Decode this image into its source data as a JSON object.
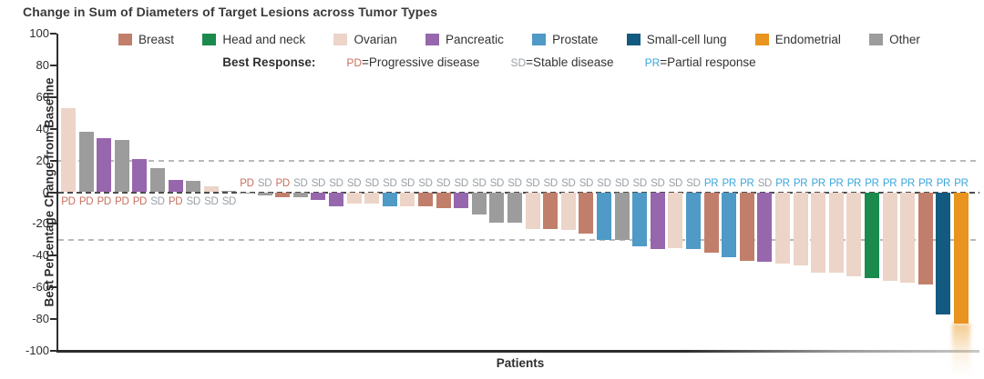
{
  "title": "Change in Sum of Diameters of Target Lesions across Tumor Types",
  "y_axis": {
    "label": "Best Percentage Change from Baseline",
    "tick_labels": [
      "100",
      "80",
      "60",
      "40",
      "20",
      "0",
      "-20",
      "-40",
      "-60",
      "-80",
      "-100"
    ],
    "tick_values": [
      100,
      80,
      60,
      40,
      20,
      0,
      -20,
      -40,
      -60,
      -80,
      -100
    ]
  },
  "x_axis": {
    "label": "Patients"
  },
  "legend": {
    "tumor_types": [
      {
        "label": "Breast",
        "color": "#c17f6b"
      },
      {
        "label": "Head and neck",
        "color": "#1a8a4d"
      },
      {
        "label": "Ovarian",
        "color": "#ecd4c8"
      },
      {
        "label": "Pancreatic",
        "color": "#9767ae"
      },
      {
        "label": "Prostate",
        "color": "#4f9ac6"
      },
      {
        "label": "Small-cell lung",
        "color": "#135a80"
      },
      {
        "label": "Endometrial",
        "color": "#e8941f"
      },
      {
        "label": "Other",
        "color": "#9c9c9c"
      }
    ],
    "best_response": {
      "heading": "Best Response:",
      "items": [
        {
          "code": "PD",
          "label": "Progressive disease",
          "color": "#c76f5c"
        },
        {
          "code": "SD",
          "label": "Stable disease",
          "color": "#9aa0a6"
        },
        {
          "code": "PR",
          "label": "Partial response",
          "color": "#3aa5dc"
        }
      ]
    }
  },
  "chart_data": {
    "type": "bar",
    "title": "Change in Sum of Diameters of Target Lesions across Tumor Types",
    "xlabel": "Patients",
    "ylabel": "Best Percentage Change from Baseline",
    "ylim": [
      -100,
      100
    ],
    "dashed_gridlines": [
      20,
      -30
    ],
    "zero_line_dashed": true,
    "legend_position": "top",
    "bars": [
      {
        "tumor": "Ovarian",
        "response": "PD",
        "value": 53
      },
      {
        "tumor": "Other",
        "response": "PD",
        "value": 38
      },
      {
        "tumor": "Pancreatic",
        "response": "PD",
        "value": 34
      },
      {
        "tumor": "Other",
        "response": "PD",
        "value": 33
      },
      {
        "tumor": "Pancreatic",
        "response": "PD",
        "value": 21
      },
      {
        "tumor": "Other",
        "response": "SD",
        "value": 15
      },
      {
        "tumor": "Pancreatic",
        "response": "PD",
        "value": 8
      },
      {
        "tumor": "Other",
        "response": "SD",
        "value": 7
      },
      {
        "tumor": "Ovarian",
        "response": "SD",
        "value": 4
      },
      {
        "tumor": "Other",
        "response": "SD",
        "value": 1
      },
      {
        "tumor": "Other",
        "response": "PD",
        "value": -1
      },
      {
        "tumor": "Other",
        "response": "SD",
        "value": -2
      },
      {
        "tumor": "Breast",
        "response": "PD",
        "value": -3
      },
      {
        "tumor": "Other",
        "response": "SD",
        "value": -3
      },
      {
        "tumor": "Pancreatic",
        "response": "SD",
        "value": -5
      },
      {
        "tumor": "Pancreatic",
        "response": "SD",
        "value": -9
      },
      {
        "tumor": "Ovarian",
        "response": "SD",
        "value": -7
      },
      {
        "tumor": "Ovarian",
        "response": "SD",
        "value": -7
      },
      {
        "tumor": "Prostate",
        "response": "SD",
        "value": -9
      },
      {
        "tumor": "Ovarian",
        "response": "SD",
        "value": -9
      },
      {
        "tumor": "Breast",
        "response": "SD",
        "value": -9
      },
      {
        "tumor": "Breast",
        "response": "SD",
        "value": -10
      },
      {
        "tumor": "Pancreatic",
        "response": "SD",
        "value": -10
      },
      {
        "tumor": "Other",
        "response": "SD",
        "value": -14
      },
      {
        "tumor": "Other",
        "response": "SD",
        "value": -19
      },
      {
        "tumor": "Other",
        "response": "SD",
        "value": -19
      },
      {
        "tumor": "Ovarian",
        "response": "SD",
        "value": -23
      },
      {
        "tumor": "Breast",
        "response": "SD",
        "value": -23
      },
      {
        "tumor": "Ovarian",
        "response": "SD",
        "value": -24
      },
      {
        "tumor": "Breast",
        "response": "SD",
        "value": -26
      },
      {
        "tumor": "Prostate",
        "response": "SD",
        "value": -30
      },
      {
        "tumor": "Other",
        "response": "SD",
        "value": -30
      },
      {
        "tumor": "Prostate",
        "response": "SD",
        "value": -34
      },
      {
        "tumor": "Pancreatic",
        "response": "SD",
        "value": -36
      },
      {
        "tumor": "Ovarian",
        "response": "SD",
        "value": -35
      },
      {
        "tumor": "Prostate",
        "response": "SD",
        "value": -36
      },
      {
        "tumor": "Breast",
        "response": "PR",
        "value": -38
      },
      {
        "tumor": "Prostate",
        "response": "PR",
        "value": -41
      },
      {
        "tumor": "Breast",
        "response": "PR",
        "value": -43
      },
      {
        "tumor": "Pancreatic",
        "response": "SD",
        "value": -44
      },
      {
        "tumor": "Ovarian",
        "response": "PR",
        "value": -45
      },
      {
        "tumor": "Ovarian",
        "response": "PR",
        "value": -46
      },
      {
        "tumor": "Ovarian",
        "response": "PR",
        "value": -51
      },
      {
        "tumor": "Ovarian",
        "response": "PR",
        "value": -51
      },
      {
        "tumor": "Ovarian",
        "response": "PR",
        "value": -53
      },
      {
        "tumor": "Head and neck",
        "response": "PR",
        "value": -54
      },
      {
        "tumor": "Ovarian",
        "response": "PR",
        "value": -56
      },
      {
        "tumor": "Ovarian",
        "response": "PR",
        "value": -57
      },
      {
        "tumor": "Breast",
        "response": "PR",
        "value": -58
      },
      {
        "tumor": "Small-cell lung",
        "response": "PR",
        "value": -77
      },
      {
        "tumor": "Endometrial",
        "response": "PR",
        "value": -83
      }
    ]
  }
}
